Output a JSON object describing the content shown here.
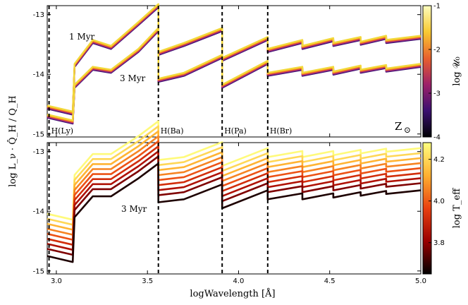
{
  "chart_data": [
    {
      "type": "line",
      "panel": "top",
      "xlim": [
        2.95,
        5.0
      ],
      "ylim": [
        -15.05,
        -12.85
      ],
      "yticks": [
        "-15",
        "-14",
        "-13"
      ],
      "ytick_values": [
        -15,
        -14,
        -13
      ],
      "edges": [
        {
          "x": 2.96,
          "label": "H(Ly)"
        },
        {
          "x": 3.56,
          "label": "H(Ba)"
        },
        {
          "x": 3.91,
          "label": "H(Pa)"
        },
        {
          "x": 4.16,
          "label": "H(Br)"
        }
      ],
      "annotations": {
        "age1": "1 Myr",
        "age3": "3 Myr",
        "metal": "Z",
        "metal_sym": "⊙"
      },
      "colorbar": {
        "label": "log 𝒰₀",
        "ticks": [
          "-1",
          "-2",
          "-3",
          "-4"
        ],
        "tick_values": [
          -1,
          -2,
          -3,
          -4
        ],
        "range": [
          -4,
          -1
        ],
        "colors": [
          "#fcfdbf",
          "#f8c932",
          "#e8602d",
          "#9d2169",
          "#3b0f70",
          "#000004"
        ]
      },
      "series": [
        {
          "name": "1 Myr",
          "points": [
            [
              2.95,
              -14.55
            ],
            [
              3.09,
              -14.65
            ],
            [
              3.1,
              -13.85
            ],
            [
              3.2,
              -13.45
            ],
            [
              3.3,
              -13.55
            ],
            [
              3.45,
              -13.15
            ],
            [
              3.56,
              -12.85
            ],
            [
              3.56,
              -13.65
            ],
            [
              3.7,
              -13.5
            ],
            [
              3.91,
              -13.25
            ],
            [
              3.91,
              -13.75
            ],
            [
              4.16,
              -13.4
            ],
            [
              4.16,
              -13.6
            ],
            [
              4.35,
              -13.45
            ],
            [
              4.35,
              -13.55
            ],
            [
              4.52,
              -13.42
            ],
            [
              4.52,
              -13.5
            ],
            [
              4.67,
              -13.4
            ],
            [
              4.67,
              -13.48
            ],
            [
              4.81,
              -13.38
            ],
            [
              4.81,
              -13.45
            ],
            [
              5.0,
              -13.38
            ]
          ]
        },
        {
          "name": "3 Myr",
          "points": [
            [
              2.95,
              -14.7
            ],
            [
              3.09,
              -14.8
            ],
            [
              3.1,
              -14.2
            ],
            [
              3.2,
              -13.9
            ],
            [
              3.3,
              -13.95
            ],
            [
              3.45,
              -13.6
            ],
            [
              3.56,
              -13.25
            ],
            [
              3.56,
              -14.1
            ],
            [
              3.7,
              -14.0
            ],
            [
              3.91,
              -13.7
            ],
            [
              3.91,
              -14.2
            ],
            [
              4.16,
              -13.8
            ],
            [
              4.16,
              -14.0
            ],
            [
              4.35,
              -13.9
            ],
            [
              4.35,
              -14.0
            ],
            [
              4.52,
              -13.9
            ],
            [
              4.52,
              -13.98
            ],
            [
              4.67,
              -13.88
            ],
            [
              4.67,
              -13.95
            ],
            [
              4.81,
              -13.87
            ],
            [
              4.81,
              -13.93
            ],
            [
              5.0,
              -13.85
            ]
          ]
        }
      ]
    },
    {
      "type": "line",
      "panel": "bottom",
      "xlim": [
        2.95,
        5.0
      ],
      "ylim": [
        -15.05,
        -12.85
      ],
      "xticks": [
        "3.0",
        "3.5",
        "4.0",
        "4.5",
        "5.0"
      ],
      "xtick_values": [
        3.0,
        3.5,
        4.0,
        4.5,
        5.0
      ],
      "yticks": [
        "-15",
        "-14",
        "-13"
      ],
      "ytick_values": [
        -15,
        -14,
        -13
      ],
      "edges": [
        {
          "x": 2.96,
          "label": ""
        },
        {
          "x": 3.56,
          "label": ""
        },
        {
          "x": 3.91,
          "label": ""
        },
        {
          "x": 4.16,
          "label": ""
        }
      ],
      "annotations": {
        "age3": "3 Myr"
      },
      "colorbar": {
        "label": "log T_eff",
        "ticks": [
          "4.2",
          "4.0",
          "3.8"
        ],
        "tick_values": [
          4.2,
          4.0,
          3.8
        ],
        "range": [
          3.65,
          4.28
        ],
        "colors": [
          "#ffff80",
          "#ffb030",
          "#e84010",
          "#9a0000",
          "#000000"
        ]
      },
      "series_levels": [
        4.27,
        4.2,
        4.13,
        4.06,
        3.99,
        3.92,
        3.85,
        3.78,
        3.68
      ],
      "series_shape": [
        [
          2.95,
          -14.75
        ],
        [
          3.09,
          -14.85
        ],
        [
          3.1,
          -14.1
        ],
        [
          3.2,
          -13.75
        ],
        [
          3.3,
          -13.75
        ],
        [
          3.45,
          -13.45
        ],
        [
          3.56,
          -13.2
        ],
        [
          3.56,
          -13.85
        ],
        [
          3.7,
          -13.8
        ],
        [
          3.91,
          -13.55
        ],
        [
          3.91,
          -13.95
        ],
        [
          4.16,
          -13.65
        ],
        [
          4.16,
          -13.8
        ],
        [
          4.35,
          -13.7
        ],
        [
          4.35,
          -13.8
        ],
        [
          4.52,
          -13.7
        ],
        [
          4.52,
          -13.77
        ],
        [
          4.67,
          -13.68
        ],
        [
          4.67,
          -13.74
        ],
        [
          4.81,
          -13.66
        ],
        [
          4.81,
          -13.71
        ],
        [
          5.0,
          -13.65
        ]
      ]
    }
  ],
  "axis": {
    "ylabel": "log L_ν · Q̂_H / Q_H",
    "xlabel": "logWavelength [Å]"
  }
}
